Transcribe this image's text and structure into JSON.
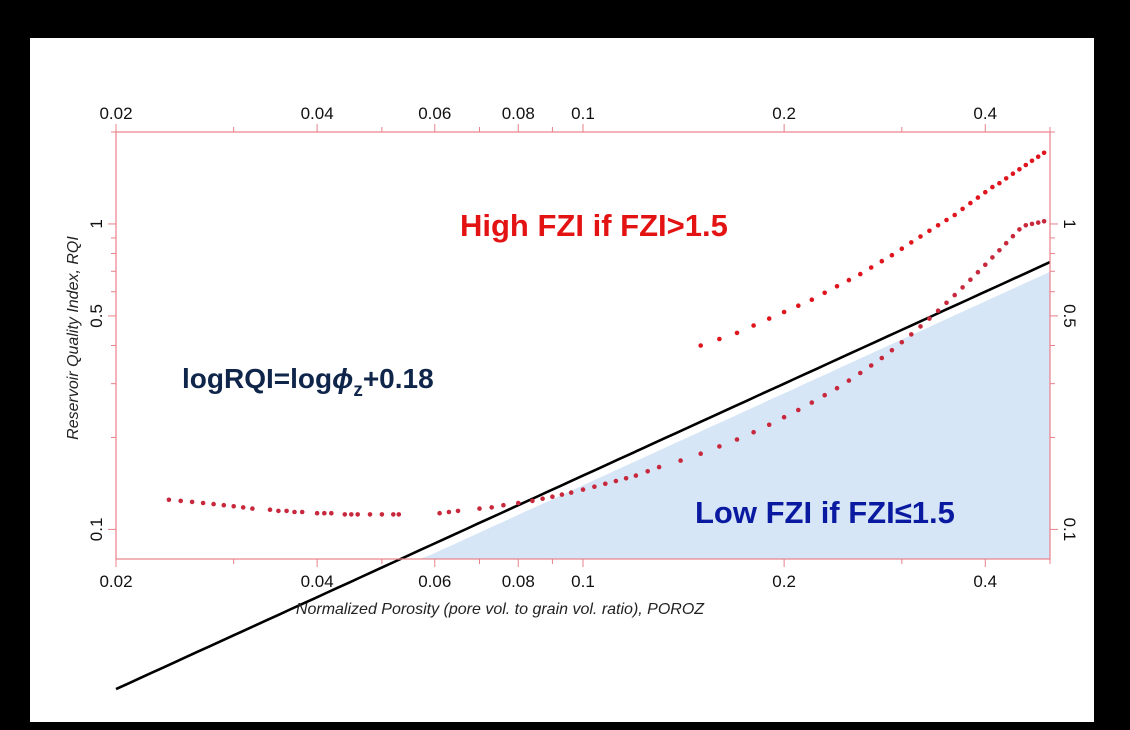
{
  "chart_data": {
    "type": "scatter",
    "xlabel": "Normalized Porosity (pore vol. to grain vol. ratio), POROZ",
    "ylabel": "Reservoir Quality Index, RQI",
    "x_scale": "log",
    "y_scale": "log",
    "xlim": [
      0.02,
      0.5
    ],
    "ylim": [
      0.08,
      2.0
    ],
    "x_ticks": [
      {
        "value": 0.02,
        "label": "0.02"
      },
      {
        "value": 0.04,
        "label": "0.04"
      },
      {
        "value": 0.06,
        "label": "0.06"
      },
      {
        "value": 0.08,
        "label": "0.08"
      },
      {
        "value": 0.1,
        "label": "0.1"
      },
      {
        "value": 0.2,
        "label": "0.2"
      },
      {
        "value": 0.4,
        "label": "0.4"
      }
    ],
    "x_minor_ticks": [
      0.03,
      0.05,
      0.07,
      0.09,
      0.3,
      0.5
    ],
    "y_ticks": [
      {
        "value": 0.1,
        "label": "0.1"
      },
      {
        "value": 0.5,
        "label": "0.5"
      },
      {
        "value": 1,
        "label": "1"
      }
    ],
    "y_minor_ticks": [
      0.2,
      0.3,
      0.4,
      0.6,
      0.7,
      0.8,
      0.9,
      2
    ],
    "boundary_line": {
      "fzi": 1.5,
      "color": "#000000"
    },
    "shaded_region": {
      "below_fzi": 1.5,
      "color": "#d6e6f7"
    },
    "series": [
      {
        "color": "#e0141c",
        "x": [
          0.15,
          0.16,
          0.17,
          0.18,
          0.19,
          0.2,
          0.21,
          0.22,
          0.23,
          0.24,
          0.25,
          0.26,
          0.27,
          0.28,
          0.29,
          0.3,
          0.31,
          0.32,
          0.33,
          0.34,
          0.35,
          0.36,
          0.37,
          0.38,
          0.39,
          0.4,
          0.41,
          0.42,
          0.43,
          0.44,
          0.45,
          0.46,
          0.47,
          0.48,
          0.49
        ],
        "y": [
          0.4,
          0.42,
          0.44,
          0.465,
          0.49,
          0.515,
          0.54,
          0.565,
          0.595,
          0.625,
          0.655,
          0.685,
          0.72,
          0.755,
          0.79,
          0.83,
          0.87,
          0.91,
          0.95,
          0.99,
          1.03,
          1.07,
          1.12,
          1.17,
          1.22,
          1.27,
          1.32,
          1.36,
          1.41,
          1.46,
          1.51,
          1.56,
          1.61,
          1.66,
          1.71
        ]
      },
      {
        "color": "#c8283c",
        "x": [
          0.024,
          0.025,
          0.026,
          0.027,
          0.028,
          0.029,
          0.03,
          0.031,
          0.032,
          0.034,
          0.035,
          0.036,
          0.037,
          0.038,
          0.04,
          0.041,
          0.042,
          0.044,
          0.045,
          0.046,
          0.048,
          0.05,
          0.052,
          0.053,
          0.061,
          0.063,
          0.065,
          0.07,
          0.073,
          0.076,
          0.08,
          0.084,
          0.087,
          0.09,
          0.093,
          0.096,
          0.1,
          0.104,
          0.108,
          0.112,
          0.116,
          0.12,
          0.125,
          0.13,
          0.14,
          0.15,
          0.16,
          0.17,
          0.18,
          0.19,
          0.2,
          0.21,
          0.22,
          0.23,
          0.24,
          0.25,
          0.26,
          0.27,
          0.28,
          0.29,
          0.3,
          0.31,
          0.32,
          0.33,
          0.34,
          0.35,
          0.36,
          0.37,
          0.38,
          0.39,
          0.4,
          0.41,
          0.42,
          0.43,
          0.44,
          0.45,
          0.46,
          0.47,
          0.48,
          0.49
        ],
        "y": [
          0.125,
          0.124,
          0.123,
          0.122,
          0.121,
          0.12,
          0.119,
          0.118,
          0.117,
          0.116,
          0.115,
          0.115,
          0.114,
          0.114,
          0.113,
          0.113,
          0.113,
          0.112,
          0.112,
          0.112,
          0.112,
          0.112,
          0.112,
          0.112,
          0.113,
          0.114,
          0.115,
          0.117,
          0.118,
          0.12,
          0.122,
          0.124,
          0.126,
          0.128,
          0.13,
          0.132,
          0.135,
          0.138,
          0.141,
          0.144,
          0.147,
          0.15,
          0.155,
          0.16,
          0.168,
          0.177,
          0.187,
          0.197,
          0.208,
          0.22,
          0.233,
          0.246,
          0.26,
          0.275,
          0.29,
          0.307,
          0.325,
          0.344,
          0.364,
          0.386,
          0.41,
          0.435,
          0.462,
          0.49,
          0.52,
          0.552,
          0.585,
          0.62,
          0.657,
          0.695,
          0.735,
          0.777,
          0.82,
          0.865,
          0.912,
          0.96,
          0.99,
          1.0,
          1.01,
          1.02
        ]
      }
    ],
    "annotations": [
      {
        "id": "high",
        "text": "High FZI if FZI>1.5",
        "color": "#e31313"
      },
      {
        "id": "low",
        "text": "Low FZI if FZI≤1.5",
        "color": "#0a1aa0"
      },
      {
        "id": "equation",
        "prefix": "logRQI=log",
        "symbol": "ϕ",
        "subscript": "z",
        "suffix": "+0.18",
        "color": "#10254a"
      }
    ]
  }
}
